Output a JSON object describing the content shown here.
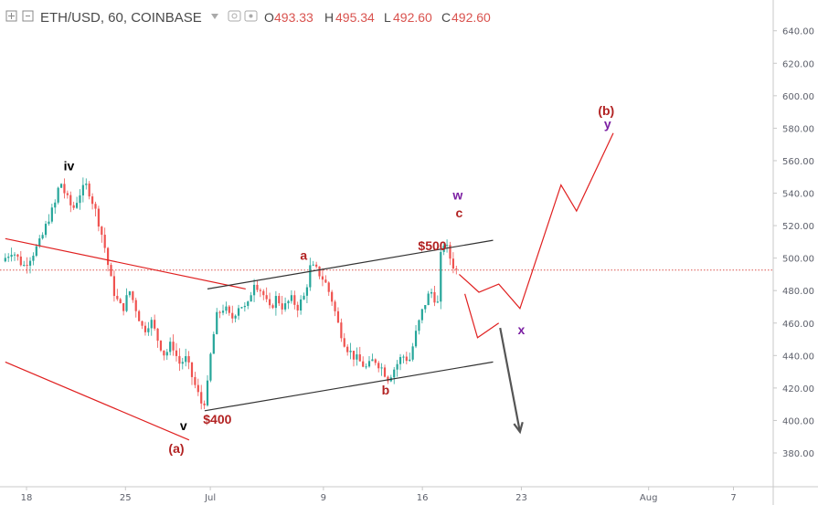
{
  "header": {
    "symbol": "ETH/USD, 60, COINBASE",
    "open_key": "O",
    "open": "493.33",
    "high_key": "H",
    "high": "495.34",
    "low_key": "L",
    "low": "492.60",
    "close_key": "C",
    "close": "492.60"
  },
  "colors": {
    "up": "#26a69a",
    "down": "#ef5350",
    "wick": "#555555",
    "red_line": "#e02020",
    "channel": "#333333",
    "label_red": "#b22222",
    "label_purple": "#7b1fa2",
    "label_black": "#000000",
    "price_line": "#d9534f",
    "arrow": "#555555",
    "axis": "#c8c8c8"
  },
  "chart_data": {
    "type": "candlestick",
    "title": "ETH/USD, 60, COINBASE",
    "ylim": [
      370,
      650
    ],
    "xlim": [
      0,
      45
    ],
    "y_ticks": [
      "380.00",
      "400.00",
      "420.00",
      "440.00",
      "460.00",
      "480.00",
      "500.00",
      "520.00",
      "540.00",
      "560.00",
      "580.00",
      "600.00",
      "620.00",
      "640.00"
    ],
    "x_ticks": [
      {
        "label": "18",
        "day": 0
      },
      {
        "label": "25",
        "day": 7
      },
      {
        "label": "Jul",
        "day": 13
      },
      {
        "label": "9",
        "day": 21
      },
      {
        "label": "16",
        "day": 28
      },
      {
        "label": "23",
        "day": 35
      },
      {
        "label": "Aug",
        "day": 44
      },
      {
        "label": "7",
        "day": 50
      }
    ],
    "current_price": 492.6,
    "price_path": [
      [
        -1.5,
        498
      ],
      [
        -0.8,
        505
      ],
      [
        0,
        495
      ],
      [
        0.6,
        502
      ],
      [
        1.2,
        510
      ],
      [
        1.8,
        525
      ],
      [
        2.2,
        532
      ],
      [
        2.6,
        548
      ],
      [
        3.0,
        538
      ],
      [
        3.5,
        530
      ],
      [
        4.0,
        540
      ],
      [
        4.5,
        545
      ],
      [
        5.0,
        532
      ],
      [
        5.4,
        520
      ],
      [
        5.8,
        505
      ],
      [
        6.1,
        490
      ],
      [
        6.5,
        476
      ],
      [
        7.0,
        468
      ],
      [
        7.5,
        480
      ],
      [
        8.0,
        468
      ],
      [
        8.5,
        455
      ],
      [
        9.0,
        462
      ],
      [
        9.5,
        450
      ],
      [
        10.0,
        440
      ],
      [
        10.5,
        448
      ],
      [
        11.0,
        435
      ],
      [
        11.5,
        438
      ],
      [
        12.0,
        425
      ],
      [
        12.4,
        415
      ],
      [
        12.7,
        408
      ],
      [
        13.0,
        420
      ],
      [
        13.3,
        445
      ],
      [
        13.7,
        465
      ],
      [
        14.2,
        470
      ],
      [
        14.7,
        462
      ],
      [
        15.3,
        472
      ],
      [
        15.8,
        468
      ],
      [
        16.3,
        486
      ],
      [
        16.9,
        479
      ],
      [
        17.4,
        468
      ],
      [
        17.9,
        476
      ],
      [
        18.4,
        469
      ],
      [
        18.9,
        475
      ],
      [
        19.4,
        470
      ],
      [
        19.9,
        477
      ],
      [
        20.3,
        495
      ],
      [
        20.8,
        492
      ],
      [
        21.3,
        486
      ],
      [
        21.8,
        475
      ],
      [
        22.3,
        458
      ],
      [
        22.8,
        446
      ],
      [
        23.3,
        440
      ],
      [
        23.8,
        436
      ],
      [
        24.3,
        432
      ],
      [
        24.8,
        438
      ],
      [
        25.3,
        433
      ],
      [
        25.8,
        426
      ],
      [
        26.3,
        433
      ],
      [
        26.8,
        440
      ],
      [
        27.3,
        437
      ],
      [
        27.8,
        455
      ],
      [
        28.3,
        470
      ],
      [
        28.8,
        480
      ],
      [
        29.3,
        472
      ],
      [
        29.5,
        500
      ],
      [
        29.7,
        510
      ],
      [
        30.0,
        505
      ],
      [
        30.3,
        497
      ],
      [
        30.6,
        492.6
      ]
    ],
    "lines": [
      {
        "name": "red-upper-line",
        "color": "red_line",
        "points": [
          [
            -1.5,
            512
          ],
          [
            15.5,
            481
          ]
        ]
      },
      {
        "name": "red-lower-line",
        "color": "red_line",
        "points": [
          [
            -1.5,
            436
          ],
          [
            11.5,
            388
          ]
        ]
      },
      {
        "name": "channel-upper-line",
        "color": "channel",
        "points": [
          [
            12.8,
            481
          ],
          [
            33.0,
            511
          ]
        ]
      },
      {
        "name": "channel-lower-line",
        "color": "channel",
        "points": [
          [
            12.6,
            406
          ],
          [
            33.0,
            436
          ]
        ]
      },
      {
        "name": "projection-y-path",
        "color": "red_line",
        "points": [
          [
            30.6,
            490
          ],
          [
            32.0,
            479
          ],
          [
            33.4,
            484
          ],
          [
            34.9,
            469
          ],
          [
            37.8,
            545
          ],
          [
            38.9,
            529
          ],
          [
            41.5,
            577
          ]
        ]
      },
      {
        "name": "projection-x-path",
        "color": "red_line",
        "points": [
          [
            31.0,
            478
          ],
          [
            31.9,
            451
          ],
          [
            33.4,
            460
          ]
        ]
      }
    ],
    "arrow": {
      "name": "projection-arrow",
      "from": [
        33.5,
        457
      ],
      "to": [
        34.9,
        393
      ]
    },
    "annotations": [
      {
        "name": "label-iv",
        "text": "iv",
        "day": 3.0,
        "price": 554,
        "color": "label_black"
      },
      {
        "name": "label-v",
        "text": "v",
        "day": 11.1,
        "price": 394,
        "color": "label_black"
      },
      {
        "name": "label-a-wave",
        "text": "(a)",
        "day": 10.6,
        "price": 380,
        "color": "label_red"
      },
      {
        "name": "label-400",
        "text": "$400",
        "day": 13.5,
        "price": 398,
        "color": "label_red"
      },
      {
        "name": "label-a",
        "text": "a",
        "day": 19.6,
        "price": 499,
        "color": "label_red"
      },
      {
        "name": "label-b",
        "text": "b",
        "day": 25.4,
        "price": 416,
        "color": "label_red"
      },
      {
        "name": "label-500",
        "text": "$500",
        "day": 28.7,
        "price": 505,
        "color": "label_red"
      },
      {
        "name": "label-w",
        "text": "w",
        "day": 30.5,
        "price": 536,
        "color": "label_purple"
      },
      {
        "name": "label-c",
        "text": "c",
        "day": 30.6,
        "price": 525,
        "color": "label_red"
      },
      {
        "name": "label-x",
        "text": "x",
        "day": 35.0,
        "price": 453,
        "color": "label_purple"
      },
      {
        "name": "label-b-wave",
        "text": "(b)",
        "day": 41.0,
        "price": 588,
        "color": "label_red"
      },
      {
        "name": "label-y",
        "text": "y",
        "day": 41.1,
        "price": 580,
        "color": "label_purple"
      }
    ]
  }
}
